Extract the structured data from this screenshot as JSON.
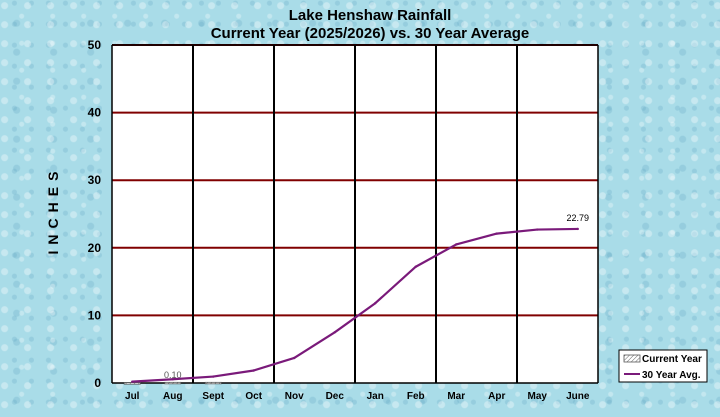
{
  "chart_data": {
    "type": "line",
    "title": "Lake Henshaw Rainfall",
    "subtitle": "Current Year (2025/2026) vs. 30 Year Average",
    "ylabel": "INCHES",
    "xlabel": "",
    "categories": [
      "Jul",
      "Aug",
      "Sept",
      "Oct",
      "Nov",
      "Dec",
      "Jan",
      "Feb",
      "Mar",
      "Apr",
      "May",
      "June"
    ],
    "ylim": [
      0,
      50
    ],
    "yticks": [
      0,
      10,
      20,
      30,
      40,
      50
    ],
    "grid": true,
    "legend_position": "bottom-right",
    "series": [
      {
        "name": "Current Year",
        "type": "bar",
        "values": [
          0.05,
          0.1,
          0.1,
          null,
          null,
          null,
          null,
          null,
          null,
          null,
          null,
          null
        ],
        "label": {
          "index": 1,
          "text": "0.10"
        },
        "color": "#555555"
      },
      {
        "name": "30 Year Avg.",
        "type": "line",
        "values": [
          0.2,
          0.55,
          0.95,
          1.85,
          3.7,
          7.5,
          11.8,
          17.2,
          20.5,
          22.1,
          22.7,
          22.79
        ],
        "label": {
          "index": 11,
          "text": "22.79"
        },
        "color": "#7a1a7a"
      }
    ],
    "colors": {
      "plot_background": "#ffffff",
      "horizontal_grid": "#800000",
      "vertical_grid": "#000000"
    }
  }
}
